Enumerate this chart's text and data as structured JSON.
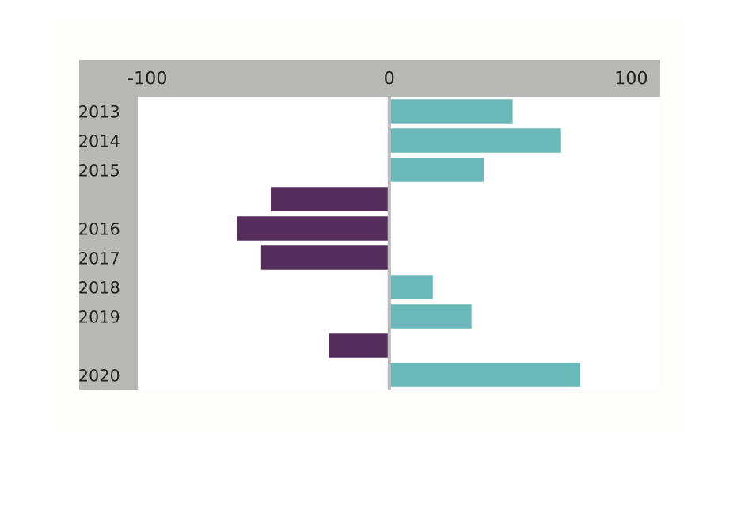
{
  "chart_data": {
    "type": "bar",
    "orientation": "horizontal",
    "categories": [
      "2013",
      "2014",
      "2015",
      null,
      "2016",
      "2017",
      "2018",
      "2019",
      null,
      "2020"
    ],
    "values": [
      51,
      71,
      39,
      -49,
      -63,
      -53,
      18,
      34,
      -25,
      79
    ],
    "colors": [
      "#6ab8b7",
      "#6ab8b7",
      "#6ab8b7",
      "#552e5e",
      "#552e5e",
      "#552e5e",
      "#6ab8b7",
      "#6ab8b7",
      "#552e5e",
      "#6ab8b7"
    ],
    "xlim": [
      -104,
      112
    ],
    "xticks": [
      -100,
      0,
      100
    ],
    "ref_lines": [
      {
        "axis": "x",
        "value": 0,
        "color": "#bdbdbd"
      }
    ],
    "grid": false
  }
}
